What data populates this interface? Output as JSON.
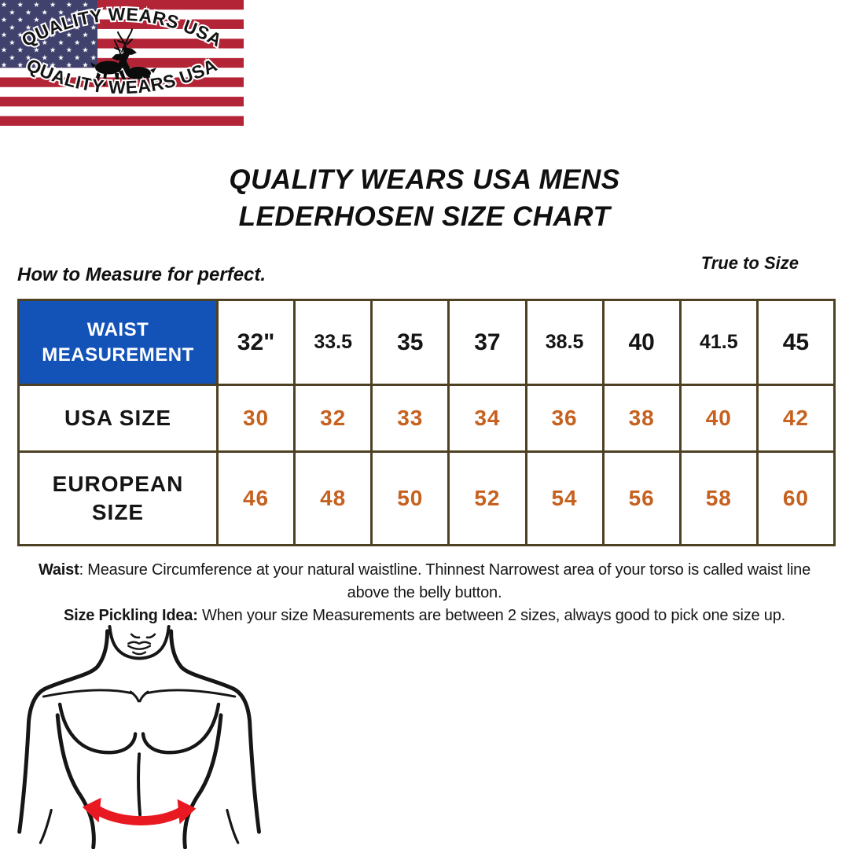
{
  "brand": {
    "arc_top": "QUALITY WEARS USA",
    "arc_bottom": "QUALITY WEARS USA"
  },
  "title": {
    "line1": "QUALITY WEARS USA MENS",
    "line2": "LEDERHOSEN SIZE CHART"
  },
  "subtitles": {
    "left": "How to Measure for perfect.",
    "right": "True to Size"
  },
  "size_table": {
    "rows": [
      {
        "label": "WAIST\nMEASUREMENT",
        "values": [
          "32\"",
          "33.5",
          "35",
          "37",
          "38.5",
          "40",
          "41.5",
          "45"
        ]
      },
      {
        "label": "USA SIZE",
        "values": [
          "30",
          "32",
          "33",
          "34",
          "36",
          "38",
          "40",
          "42"
        ]
      },
      {
        "label": "EUROPEAN\nSIZE",
        "values": [
          "46",
          "48",
          "50",
          "52",
          "54",
          "56",
          "58",
          "60"
        ]
      }
    ]
  },
  "notes": {
    "waist_label": "Waist",
    "waist_text": ": Measure Circumference at your natural waistline. Thinnest Narrowest area of your torso is called waist line above the belly button.",
    "pick_label": "Size Pickling Idea:",
    "pick_text": " When your size Measurements are between 2 sizes, always good to pick one size up."
  },
  "colors": {
    "header_blue": "#1353b8",
    "value_orange": "#c6611f",
    "table_border": "#4e4123",
    "flag_red": "#b32437",
    "flag_blue": "#41416e",
    "arrow_red": "#e81920"
  }
}
